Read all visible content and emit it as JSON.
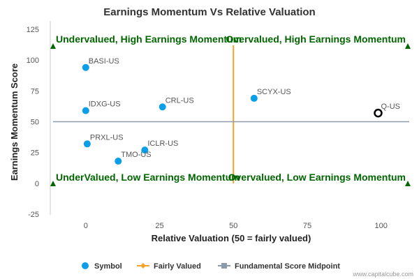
{
  "chart_data": {
    "type": "scatter",
    "title": "Earnings Momentum Vs Relative Valuation",
    "xlabel": "Relative Valuation (50 = fairly valued)",
    "ylabel": "Earnings Momentum Score",
    "xlim": [
      -12,
      110
    ],
    "ylim": [
      -25,
      125
    ],
    "x_ticks": [
      0,
      25,
      50,
      75,
      100
    ],
    "y_ticks": [
      -25,
      0,
      25,
      50,
      75,
      100,
      125
    ],
    "grid": "none",
    "fairly_valued_x": 50,
    "midpoint_y": 50,
    "points": [
      {
        "label": "BASI-US",
        "x": 0,
        "y": 94
      },
      {
        "label": "IDXG-US",
        "x": 0,
        "y": 59
      },
      {
        "label": "CRL-US",
        "x": 26,
        "y": 62
      },
      {
        "label": "SCYX-US",
        "x": 57,
        "y": 69
      },
      {
        "label": "PRXL-US",
        "x": 0.5,
        "y": 32
      },
      {
        "label": "ICLR-US",
        "x": 20,
        "y": 27
      },
      {
        "label": "TMO-US",
        "x": 11,
        "y": 18
      },
      {
        "label": "Q-US",
        "x": 99,
        "y": 57,
        "highlight": true
      }
    ],
    "quadrant_labels": {
      "top_left": "Undervalued, High Earnings Momentum",
      "top_right": "Overvalued, High Earnings Momentum",
      "bottom_left": "UnderValued, Low Earnings Momentum",
      "bottom_right": "Overvalued, Low Earnings Momentum"
    },
    "legend": [
      "Symbol",
      "Fairly Valued",
      "Fundamental Score Midpoint"
    ],
    "legend_position": "bottom"
  },
  "colors": {
    "symbol": "#0a9fe8",
    "fairly_valued": "#f7a32b",
    "midpoint": "#8c9aaa",
    "quadrant_text": "#006600",
    "highlight_stroke": "#000000"
  },
  "credit": "www.capitalcube.com"
}
